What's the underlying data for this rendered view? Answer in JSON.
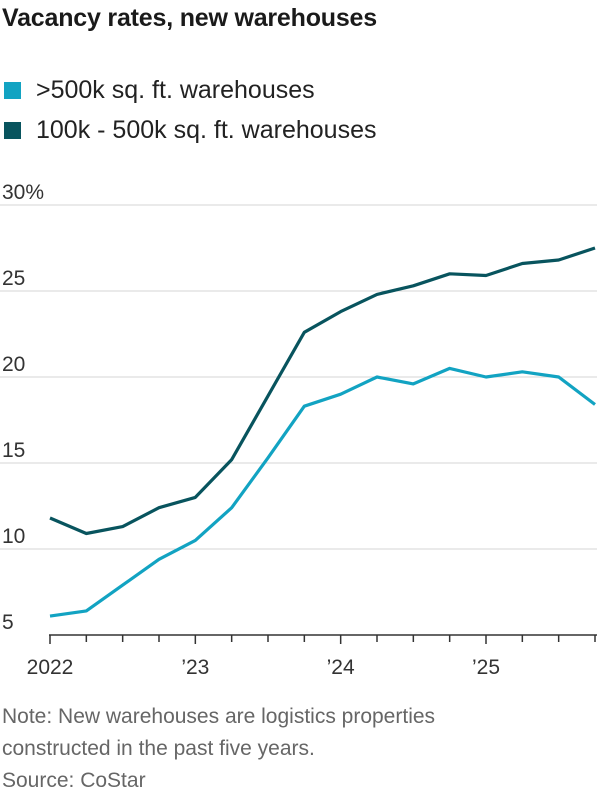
{
  "chart_data": {
    "type": "line",
    "title": "Vacancy rates, new warehouses",
    "xlabel": "",
    "ylabel": "",
    "ylim": [
      5,
      30
    ],
    "yticks": [
      5,
      10,
      15,
      20,
      25,
      30
    ],
    "ytick_labels": [
      "5",
      "10",
      "15",
      "20",
      "25",
      "30%"
    ],
    "x": [
      2022.0,
      2022.25,
      2022.5,
      2022.75,
      2023.0,
      2023.25,
      2023.5,
      2023.75,
      2024.0,
      2024.25,
      2024.5,
      2024.75,
      2025.0,
      2025.25,
      2025.5,
      2025.75
    ],
    "xlim": [
      2022.0,
      2025.75
    ],
    "xtick_labels": [
      {
        "x": 2022,
        "label": "2022"
      },
      {
        "x": 2023,
        "label": "’23"
      },
      {
        "x": 2024,
        "label": "’24"
      },
      {
        "x": 2025,
        "label": "’25"
      }
    ],
    "series": [
      {
        "name": ">500k sq. ft. warehouses",
        "color": "#12a3c2",
        "values": [
          6.1,
          6.4,
          7.9,
          9.4,
          10.5,
          12.4,
          15.3,
          18.3,
          19.0,
          20.0,
          19.6,
          20.5,
          20.0,
          20.3,
          20.0,
          18.4
        ]
      },
      {
        "name": "100k - 500k sq. ft. warehouses",
        "color": "#08545e",
        "values": [
          11.8,
          10.9,
          11.3,
          12.4,
          13.0,
          15.2,
          18.9,
          22.6,
          23.8,
          24.8,
          25.3,
          26.0,
          25.9,
          26.6,
          26.8,
          27.5
        ]
      }
    ]
  },
  "footer": {
    "note_line1": "Note: New warehouses are logistics properties",
    "note_line2": "constructed in the past five years.",
    "source": "Source: CoStar"
  }
}
